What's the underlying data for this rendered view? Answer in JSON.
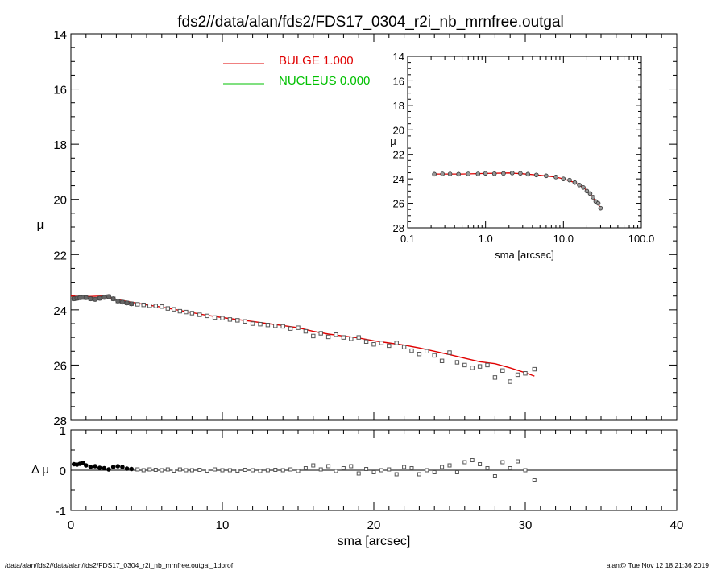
{
  "title": "fds2//data/alan/fds2/FDS17_0304_r2i_nb_mrnfree.outgal",
  "footer": {
    "left": "/data/alan/fds2//data/alan/fds2/FDS17_0304_r2i_nb_mrnfree.outgal_1dprof",
    "right": "alan@  Tue Nov 12 18:21:36 2019"
  },
  "colors": {
    "bulge": "#e00000",
    "nucleus": "#00c000",
    "axis": "#000000"
  },
  "chart_data": [
    {
      "type": "scatter",
      "xlim": [
        0,
        40
      ],
      "ylim": [
        28,
        14
      ],
      "y_inverted": true,
      "ylabel": "μ",
      "xticks": [
        0,
        10,
        20,
        30,
        40
      ],
      "yticks": [
        14,
        16,
        18,
        20,
        22,
        24,
        26,
        28
      ],
      "legend_placement": "top-center",
      "legend": [
        {
          "label": "BULGE  1.000",
          "color": "#e00000"
        },
        {
          "label": "NUCLEUS  0.000",
          "color": "#00c000"
        }
      ],
      "series": [
        {
          "kind": "points",
          "x": [
            0.2,
            0.4,
            0.6,
            0.8,
            1.0,
            1.3,
            1.6,
            1.9,
            2.2,
            2.5,
            2.8,
            3.1,
            3.4,
            3.7,
            4.0,
            4.4,
            4.8,
            5.2,
            5.6,
            6.0,
            6.4,
            6.8,
            7.2,
            7.6,
            8.0,
            8.5,
            9.0,
            9.5,
            10.0,
            10.5,
            11.0,
            11.5,
            12.0,
            12.5,
            13.0,
            13.5,
            14.0,
            14.5,
            15.0,
            15.5,
            16.0,
            16.5,
            17.0,
            17.5,
            18.0,
            18.5,
            19.0,
            19.5,
            20.0,
            20.5,
            21.0,
            21.5,
            22.0,
            22.5,
            23.0,
            23.5,
            24.0,
            24.5,
            25.0,
            25.5,
            26.0,
            26.5,
            27.0,
            27.5,
            28.0,
            28.5,
            29.0,
            29.5,
            30.0,
            30.6
          ],
          "y": [
            23.6,
            23.58,
            23.56,
            23.55,
            23.56,
            23.6,
            23.62,
            23.58,
            23.55,
            23.52,
            23.6,
            23.68,
            23.72,
            23.75,
            23.78,
            23.8,
            23.82,
            23.85,
            23.86,
            23.88,
            23.95,
            23.98,
            24.05,
            24.08,
            24.12,
            24.18,
            24.22,
            24.28,
            24.3,
            24.35,
            24.38,
            24.42,
            24.5,
            24.52,
            24.55,
            24.58,
            24.6,
            24.68,
            24.65,
            24.78,
            24.95,
            24.85,
            24.98,
            24.9,
            25.0,
            25.05,
            25.0,
            25.15,
            25.25,
            25.2,
            25.3,
            25.2,
            25.35,
            25.48,
            25.6,
            25.5,
            25.65,
            25.85,
            25.55,
            25.9,
            26.0,
            26.1,
            26.05,
            26.0,
            26.45,
            26.2,
            26.6,
            26.35,
            26.3,
            26.15
          ]
        },
        {
          "kind": "line",
          "name": "BULGE",
          "color": "#e00000",
          "x": [
            0.0,
            1.0,
            2.0,
            3.0,
            4.0,
            5.0,
            6.0,
            7.0,
            8.0,
            9.0,
            10.0,
            11.0,
            12.0,
            13.0,
            14.0,
            15.0,
            16.0,
            17.0,
            18.0,
            19.0,
            20.0,
            21.0,
            22.0,
            23.0,
            24.0,
            25.0,
            26.0,
            27.0,
            28.0,
            29.0,
            30.0,
            30.6
          ],
          "y": [
            23.5,
            23.52,
            23.5,
            23.62,
            23.72,
            23.82,
            23.9,
            24.0,
            24.1,
            24.2,
            24.28,
            24.35,
            24.42,
            24.5,
            24.57,
            24.65,
            24.78,
            24.88,
            24.95,
            25.02,
            25.12,
            25.2,
            25.28,
            25.38,
            25.5,
            25.62,
            25.75,
            25.88,
            25.95,
            26.1,
            26.28,
            26.4
          ]
        }
      ]
    },
    {
      "type": "scatter",
      "xscale": "log",
      "xlim": [
        0.1,
        100
      ],
      "ylim": [
        28,
        14
      ],
      "y_inverted": true,
      "xlabel": "sma [arcsec]",
      "ylabel": "μ",
      "xticks": [
        "0.1",
        "1.0",
        "10.0",
        "100.0"
      ],
      "yticks": [
        14,
        16,
        18,
        20,
        22,
        24,
        26,
        28
      ],
      "series": [
        {
          "kind": "points",
          "x": [
            0.22,
            0.28,
            0.35,
            0.45,
            0.6,
            0.8,
            1.0,
            1.3,
            1.7,
            2.2,
            2.8,
            3.5,
            4.5,
            6.0,
            8.0,
            10.0,
            12.0,
            14.0,
            16.0,
            18.0,
            20.0,
            22.0,
            24.0,
            26.0,
            28.0,
            30.0
          ],
          "y": [
            23.62,
            23.6,
            23.6,
            23.62,
            23.6,
            23.6,
            23.55,
            23.58,
            23.56,
            23.52,
            23.55,
            23.62,
            23.68,
            23.75,
            23.85,
            24.0,
            24.1,
            24.3,
            24.5,
            24.7,
            25.0,
            25.2,
            25.5,
            25.85,
            26.0,
            26.4
          ]
        },
        {
          "kind": "line",
          "name": "BULGE",
          "color": "#e00000",
          "x": [
            0.22,
            0.5,
            1.0,
            2.0,
            3.0,
            5.0,
            8.0,
            10.0,
            14.0,
            18.0,
            22.0,
            26.0,
            30.0
          ],
          "y": [
            23.6,
            23.6,
            23.56,
            23.52,
            23.58,
            23.7,
            23.85,
            24.0,
            24.3,
            24.7,
            25.2,
            25.85,
            26.35
          ]
        }
      ]
    },
    {
      "type": "scatter",
      "xlim": [
        0,
        40
      ],
      "ylim": [
        -1,
        1
      ],
      "xlabel": "sma [arcsec]",
      "ylabel": "Δ μ",
      "xticks": [
        0,
        10,
        20,
        30,
        40
      ],
      "yticks": [
        -1,
        0,
        1
      ],
      "reference_line": 0,
      "series": [
        {
          "kind": "points",
          "x": [
            0.2,
            0.4,
            0.6,
            0.8,
            1.0,
            1.3,
            1.6,
            1.9,
            2.2,
            2.5,
            2.8,
            3.1,
            3.4,
            3.7,
            4.0,
            4.4,
            4.8,
            5.2,
            5.6,
            6.0,
            6.4,
            6.8,
            7.2,
            7.6,
            8.0,
            8.5,
            9.0,
            9.5,
            10.0,
            10.5,
            11.0,
            11.5,
            12.0,
            12.5,
            13.0,
            13.5,
            14.0,
            14.5,
            15.0,
            15.5,
            16.0,
            16.5,
            17.0,
            17.5,
            18.0,
            18.5,
            19.0,
            19.5,
            20.0,
            20.5,
            21.0,
            21.5,
            22.0,
            22.5,
            23.0,
            23.5,
            24.0,
            24.5,
            25.0,
            25.5,
            26.0,
            26.5,
            27.0,
            27.5,
            28.0,
            28.5,
            29.0,
            29.5,
            30.0,
            30.6
          ],
          "y": [
            0.15,
            0.14,
            0.16,
            0.18,
            0.12,
            0.08,
            0.1,
            0.06,
            0.05,
            0.02,
            0.08,
            0.1,
            0.08,
            0.04,
            0.03,
            0.02,
            0.0,
            0.02,
            0.01,
            0.0,
            0.02,
            -0.01,
            0.02,
            0.0,
            0.0,
            0.01,
            -0.01,
            0.02,
            0.0,
            0.0,
            -0.01,
            0.01,
            0.0,
            -0.02,
            0.0,
            0.01,
            0.0,
            0.02,
            -0.02,
            0.05,
            0.12,
            0.02,
            0.1,
            -0.02,
            0.05,
            0.1,
            -0.08,
            0.03,
            -0.05,
            0.0,
            0.02,
            -0.1,
            0.08,
            0.05,
            -0.1,
            0.0,
            -0.05,
            0.08,
            0.12,
            -0.05,
            0.2,
            0.25,
            0.15,
            0.05,
            -0.15,
            0.2,
            0.05,
            0.22,
            0.0,
            -0.25
          ]
        }
      ]
    }
  ]
}
